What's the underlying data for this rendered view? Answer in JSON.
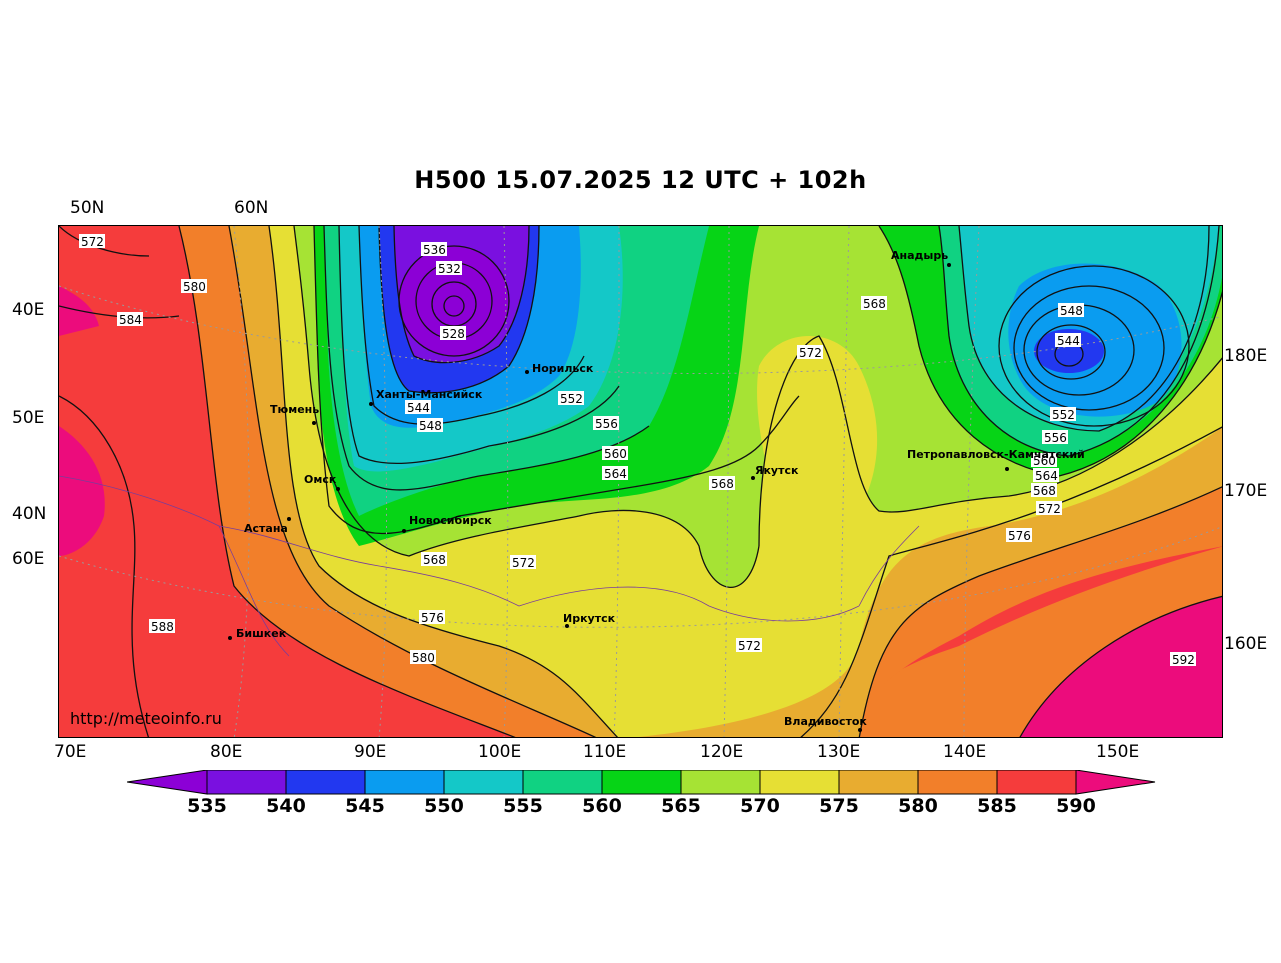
{
  "title": "H500  15.07.2025 12 UTC + 102h",
  "credit": "http://meteoinfo.ru",
  "lat_labels_top": [
    "50N",
    "60N"
  ],
  "lat_labels_left": [
    "40E",
    "50E",
    "40N",
    "60E"
  ],
  "lon_labels_bottom": [
    "70E",
    "80E",
    "90E",
    "100E",
    "110E",
    "120E",
    "130E",
    "140E",
    "150E"
  ],
  "lon_labels_right": [
    "180E",
    "170E",
    "160E"
  ],
  "colorbar": {
    "ticks": [
      "535",
      "540",
      "545",
      "550",
      "555",
      "560",
      "565",
      "570",
      "575",
      "580",
      "585",
      "590"
    ],
    "colors": [
      "#8c00d6",
      "#7a10e0",
      "#2238f0",
      "#0a9cf0",
      "#14c8c8",
      "#10d282",
      "#06d416",
      "#a6e334",
      "#e6df34",
      "#e8ac30",
      "#f27f2a",
      "#f53c3c",
      "#ec0c7c"
    ]
  },
  "colors": {
    "c536": "#8c00d6",
    "c540": "#7a10e0",
    "c545": "#2238f0",
    "c550": "#0a9cf0",
    "c555": "#14c8c8",
    "c560": "#10d282",
    "c565": "#06d416",
    "c570": "#a6e334",
    "c575": "#e6df34",
    "c580": "#e8ac30",
    "c585": "#f27f2a",
    "c590": "#f53c3c",
    "c595": "#ec0c7c"
  },
  "contour_labels": [
    "572",
    "580",
    "584",
    "536",
    "532",
    "528",
    "544",
    "548",
    "552",
    "556",
    "560",
    "564",
    "568",
    "572",
    "568",
    "572",
    "576",
    "580",
    "588",
    "568",
    "548",
    "544",
    "552",
    "556",
    "560",
    "564",
    "568",
    "572",
    "576",
    "592",
    "572"
  ],
  "cities": [
    "Анадырь",
    "Норильск",
    "Ханты-Мансийск",
    "Тюмень",
    "Омск",
    "Астана",
    "Новосибирск",
    "Якутск",
    "Петропавловск-Камчатский",
    "Иркутск",
    "Бишкек",
    "Владивосток"
  ]
}
